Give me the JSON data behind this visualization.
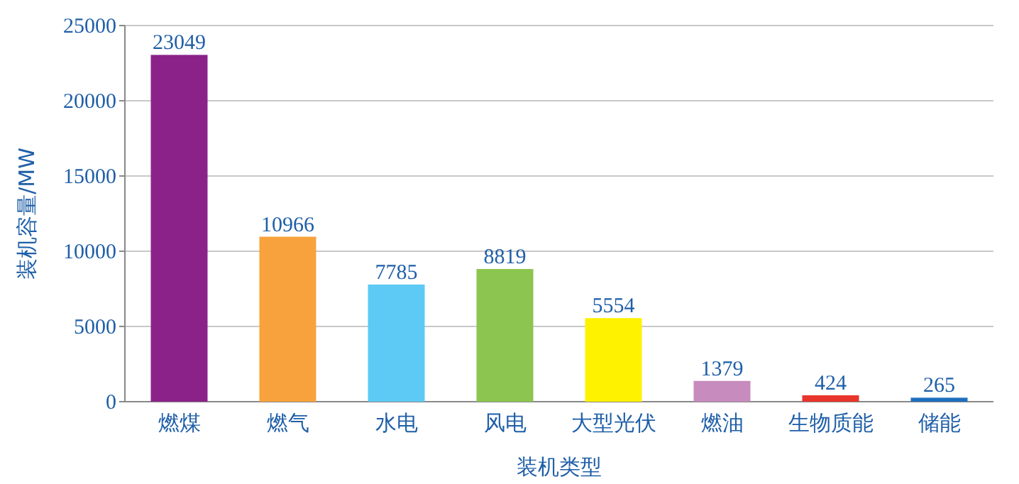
{
  "chart_data": {
    "type": "bar",
    "xlabel": "装机类型",
    "ylabel": "装机容量/MW",
    "categories": [
      "燃煤",
      "燃气",
      "水电",
      "风电",
      "大型光伏",
      "燃油",
      "生物质能",
      "储能"
    ],
    "values": [
      23049,
      10966,
      7785,
      8819,
      5554,
      1379,
      424,
      265
    ],
    "colors": [
      "#8b2289",
      "#f7a23c",
      "#5ccaf4",
      "#8cc54f",
      "#fff200",
      "#c78bbd",
      "#e8352c",
      "#1e6fbe"
    ],
    "ylim": [
      0,
      25000
    ],
    "yticks": [
      0,
      5000,
      10000,
      15000,
      20000,
      25000
    ],
    "grid": "y",
    "data_labels": true
  }
}
